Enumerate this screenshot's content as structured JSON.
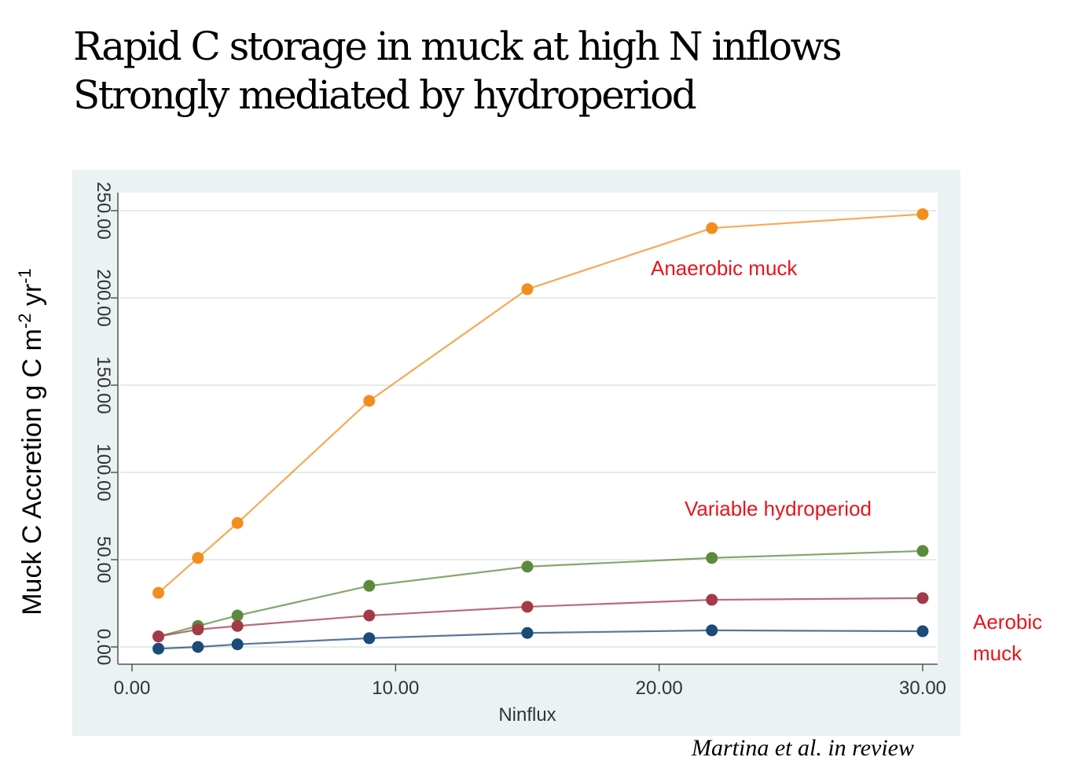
{
  "header": {
    "title_line1": "Rapid C storage in muck at high N inflows",
    "title_line2": "Strongly mediated by hydroperiod"
  },
  "citation": "Martina et al. in review",
  "chart_data": {
    "type": "line",
    "xlabel": "Ninflux",
    "ylabel_main": "Muck C Accretion g C m",
    "ylabel_sup1": "-2",
    "ylabel_mid": " yr",
    "ylabel_sup2": "-1",
    "xlim": [
      0,
      30
    ],
    "ylim": [
      -5,
      258
    ],
    "x_ticks": [
      0,
      10,
      20,
      30
    ],
    "x_tick_labels": [
      "0.00",
      "10.00",
      "20.00",
      "30.00"
    ],
    "y_ticks": [
      0,
      50,
      100,
      150,
      200,
      250
    ],
    "y_tick_labels": [
      "0.00",
      "50.00",
      "100.00",
      "150.00",
      "200.00",
      "250.00"
    ],
    "grid": true,
    "x": [
      1,
      2.5,
      4,
      9,
      15,
      22,
      30
    ],
    "series": [
      {
        "color": "#f28e1e",
        "values": [
          31,
          51,
          71,
          141,
          205,
          240,
          248
        ]
      },
      {
        "color": "#5d8a3a",
        "values": [
          6,
          12,
          18,
          35,
          46,
          51,
          55
        ]
      },
      {
        "color": "#a23a48",
        "values": [
          6,
          10,
          12,
          18,
          23,
          27,
          28
        ]
      },
      {
        "color": "#1c4a7a",
        "values": [
          -1,
          0,
          1.5,
          5,
          8,
          9.5,
          9
        ]
      }
    ],
    "annotations": {
      "anaerobic": "Anaerobic muck",
      "variable": "Variable hydroperiod",
      "aerobic_line1": "Aerobic",
      "aerobic_line2": "muck"
    },
    "colors": {
      "panel_background": "#eaf2f3",
      "plot_background": "#ffffff",
      "annotation": "#e8141c"
    }
  }
}
